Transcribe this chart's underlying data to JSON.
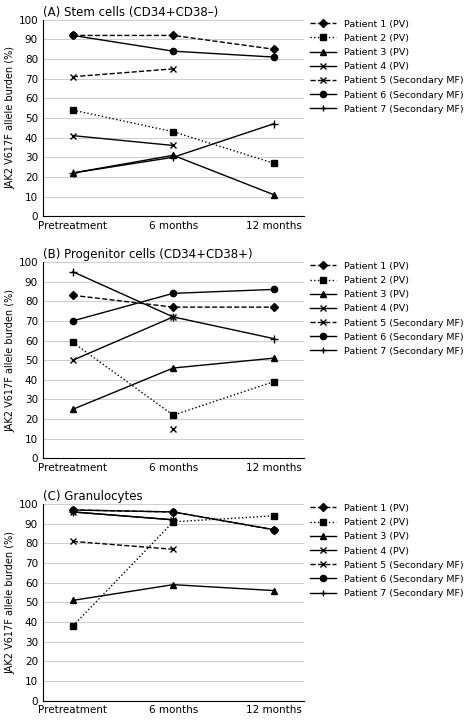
{
  "panel_A": {
    "title": "(A) Stem cells (CD34+CD38–)",
    "ylabel": "JAK2 V617F allele burden (%)",
    "patients": [
      {
        "label": "Patient 1 (PV)",
        "values": [
          92,
          92,
          85
        ],
        "linestyle": "--",
        "marker": "D",
        "color": "#000000"
      },
      {
        "label": "Patient 2 (PV)",
        "values": [
          54,
          43,
          27
        ],
        "linestyle": ":",
        "marker": "s",
        "color": "#000000"
      },
      {
        "label": "Patient 3 (PV)",
        "values": [
          22,
          31,
          11
        ],
        "linestyle": "-",
        "marker": "^",
        "color": "#000000"
      },
      {
        "label": "Patient 4 (PV)",
        "values": [
          41,
          36,
          null
        ],
        "linestyle": "-",
        "marker": "x",
        "color": "#000000"
      },
      {
        "label": "Patient 5 (Secondary MF)",
        "values": [
          71,
          75,
          null
        ],
        "linestyle": "--",
        "marker": "x",
        "color": "#000000"
      },
      {
        "label": "Patient 6 (Secondary MF)",
        "values": [
          92,
          84,
          81
        ],
        "linestyle": "-",
        "marker": "o",
        "color": "#000000"
      },
      {
        "label": "Patient 7 (Secondary MF)",
        "values": [
          22,
          30,
          47
        ],
        "linestyle": "-",
        "marker": "+",
        "color": "#000000"
      }
    ]
  },
  "panel_B": {
    "title": "(B) Progenitor cells (CD34+CD38+)",
    "ylabel": "JAK2 V617F allele burden (%)",
    "patients": [
      {
        "label": "Patient 1 (PV)",
        "values": [
          83,
          77,
          77
        ],
        "linestyle": "--",
        "marker": "D",
        "color": "#000000"
      },
      {
        "label": "Patient 2 (PV)",
        "values": [
          59,
          22,
          39
        ],
        "linestyle": ":",
        "marker": "s",
        "color": "#000000"
      },
      {
        "label": "Patient 3 (PV)",
        "values": [
          25,
          46,
          51
        ],
        "linestyle": "-",
        "marker": "^",
        "color": "#000000"
      },
      {
        "label": "Patient 4 (PV)",
        "values": [
          50,
          72,
          null
        ],
        "linestyle": "-",
        "marker": "x",
        "color": "#000000"
      },
      {
        "label": "Patient 5 (Secondary MF)",
        "values": [
          null,
          15,
          null
        ],
        "linestyle": "--",
        "marker": "x",
        "color": "#000000"
      },
      {
        "label": "Patient 6 (Secondary MF)",
        "values": [
          70,
          84,
          86
        ],
        "linestyle": "-",
        "marker": "o",
        "color": "#000000"
      },
      {
        "label": "Patient 7 (Secondary MF)",
        "values": [
          95,
          72,
          61
        ],
        "linestyle": "-",
        "marker": "+",
        "color": "#000000"
      }
    ]
  },
  "panel_C": {
    "title": "(C) Granulocytes",
    "ylabel": "JAK2 V617F allele burden (%)",
    "patients": [
      {
        "label": "Patient 1 (PV)",
        "values": [
          97,
          96,
          87
        ],
        "linestyle": "--",
        "marker": "D",
        "color": "#000000"
      },
      {
        "label": "Patient 2 (PV)",
        "values": [
          38,
          91,
          94
        ],
        "linestyle": ":",
        "marker": "s",
        "color": "#000000"
      },
      {
        "label": "Patient 3 (PV)",
        "values": [
          51,
          59,
          56
        ],
        "linestyle": "-",
        "marker": "^",
        "color": "#000000"
      },
      {
        "label": "Patient 4 (PV)",
        "values": [
          96,
          92,
          null
        ],
        "linestyle": "-",
        "marker": "x",
        "color": "#000000"
      },
      {
        "label": "Patient 5 (Secondary MF)",
        "values": [
          81,
          77,
          null
        ],
        "linestyle": "--",
        "marker": "x",
        "color": "#000000"
      },
      {
        "label": "Patient 6 (Secondary MF)",
        "values": [
          97,
          96,
          87
        ],
        "linestyle": "-",
        "marker": "o",
        "color": "#000000"
      },
      {
        "label": "Patient 7 (Secondary MF)",
        "values": [
          96,
          92,
          null
        ],
        "linestyle": "-",
        "marker": "+",
        "color": "#000000"
      }
    ]
  },
  "xtick_labels": [
    "Pretreatment",
    "6 months",
    "12 months"
  ],
  "xtick_positions": [
    0,
    1,
    2
  ],
  "ylim": [
    0,
    100
  ],
  "yticks": [
    0,
    10,
    20,
    30,
    40,
    50,
    60,
    70,
    80,
    90,
    100
  ],
  "legend_labels": [
    "Patient 1 (PV)",
    "Patient 2 (PV)",
    "Patient 3 (PV)",
    "Patient 4 (PV)",
    "Patient 5 (Secondary MF)",
    "Patient 6 (Secondary MF)",
    "Patient 7 (Secondary MF)"
  ],
  "legend_linestyles": [
    "--",
    ":",
    "-",
    "-",
    "--",
    "-",
    "-"
  ],
  "legend_markers": [
    "D",
    "s",
    "^",
    "x",
    "x",
    "o",
    "+"
  ],
  "figsize": [
    4.74,
    7.21
  ],
  "dpi": 100
}
